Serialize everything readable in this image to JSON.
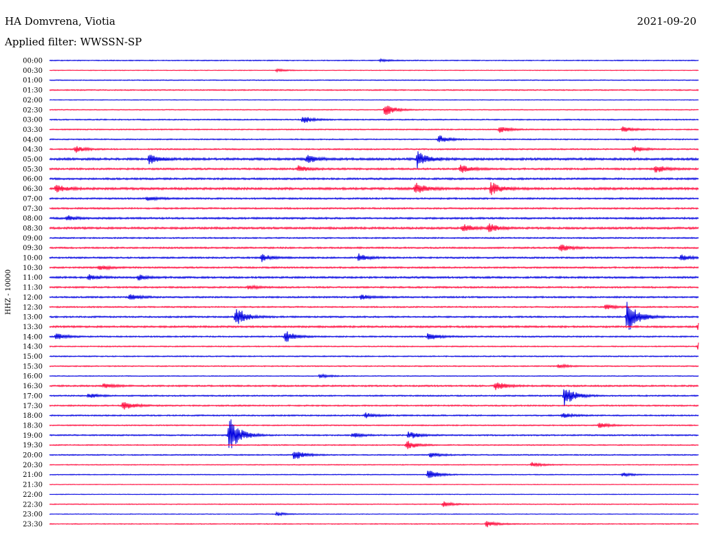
{
  "header": {
    "station": "HA Domvrena, Viotia",
    "date": "2021-09-20",
    "filter": "Applied filter: WWSSN-SP"
  },
  "chart_data": {
    "type": "line",
    "title": "HA Domvrena, Viotia",
    "subtitle": "Applied filter: WWSSN-SP",
    "ylabel": "HHZ - 10000",
    "xlabel": "",
    "grid": false,
    "colors": {
      "even_trace": "#0000e0",
      "odd_trace": "#ff0a3c"
    },
    "rows": [
      "00:00",
      "00:30",
      "01:00",
      "01:30",
      "02:00",
      "02:30",
      "03:00",
      "03:30",
      "04:00",
      "04:30",
      "05:00",
      "05:30",
      "06:00",
      "06:30",
      "07:00",
      "07:30",
      "08:00",
      "08:30",
      "09:00",
      "09:30",
      "10:00",
      "10:30",
      "11:00",
      "11:30",
      "12:00",
      "12:30",
      "13:00",
      "13:30",
      "14:00",
      "14:30",
      "15:00",
      "15:30",
      "16:00",
      "16:30",
      "17:00",
      "17:30",
      "18:00",
      "18:30",
      "19:00",
      "19:30",
      "20:00",
      "20:30",
      "21:00",
      "21:30",
      "22:00",
      "22:30",
      "23:00",
      "23:30"
    ],
    "noise_level": [
      0.4,
      0.3,
      0.4,
      0.5,
      0.3,
      0.4,
      0.5,
      0.5,
      0.5,
      0.6,
      1.0,
      0.8,
      0.8,
      1.0,
      0.7,
      0.7,
      0.8,
      0.9,
      0.6,
      0.7,
      0.7,
      0.7,
      0.8,
      0.7,
      0.7,
      0.6,
      0.7,
      0.8,
      0.6,
      0.5,
      0.5,
      0.5,
      0.4,
      0.7,
      0.6,
      0.6,
      0.6,
      0.5,
      0.6,
      0.5,
      0.5,
      0.4,
      0.4,
      0.3,
      0.3,
      0.4,
      0.3,
      0.4
    ],
    "events": [
      {
        "row": 1,
        "minute": 10.5,
        "amp": 2
      },
      {
        "row": 0,
        "minute": 15.3,
        "amp": 2
      },
      {
        "row": 5,
        "minute": 15.5,
        "amp": 9
      },
      {
        "row": 6,
        "minute": 11.7,
        "amp": 6
      },
      {
        "row": 7,
        "minute": 20.8,
        "amp": 5
      },
      {
        "row": 7,
        "minute": 26.5,
        "amp": 5
      },
      {
        "row": 8,
        "minute": 18.0,
        "amp": 6
      },
      {
        "row": 9,
        "minute": 1.2,
        "amp": 5
      },
      {
        "row": 9,
        "minute": 27.0,
        "amp": 5
      },
      {
        "row": 10,
        "minute": 4.6,
        "amp": 7
      },
      {
        "row": 10,
        "minute": 11.9,
        "amp": 6
      },
      {
        "row": 10,
        "minute": 17.0,
        "amp": 12
      },
      {
        "row": 11,
        "minute": 11.5,
        "amp": 5
      },
      {
        "row": 11,
        "minute": 19.0,
        "amp": 7
      },
      {
        "row": 11,
        "minute": 28.0,
        "amp": 6
      },
      {
        "row": 13,
        "minute": 0.3,
        "amp": 6
      },
      {
        "row": 13,
        "minute": 16.9,
        "amp": 9
      },
      {
        "row": 13,
        "minute": 20.4,
        "amp": 10
      },
      {
        "row": 14,
        "minute": 4.5,
        "amp": 4
      },
      {
        "row": 16,
        "minute": 0.8,
        "amp": 4
      },
      {
        "row": 17,
        "minute": 19.1,
        "amp": 6
      },
      {
        "row": 17,
        "minute": 20.3,
        "amp": 6
      },
      {
        "row": 19,
        "minute": 23.6,
        "amp": 6
      },
      {
        "row": 20,
        "minute": 9.8,
        "amp": 6
      },
      {
        "row": 20,
        "minute": 14.3,
        "amp": 6
      },
      {
        "row": 20,
        "minute": 29.2,
        "amp": 5
      },
      {
        "row": 21,
        "minute": 2.3,
        "amp": 4
      },
      {
        "row": 22,
        "minute": 1.8,
        "amp": 4
      },
      {
        "row": 22,
        "minute": 4.1,
        "amp": 4
      },
      {
        "row": 23,
        "minute": 9.2,
        "amp": 3
      },
      {
        "row": 24,
        "minute": 3.7,
        "amp": 5
      },
      {
        "row": 24,
        "minute": 14.4,
        "amp": 4
      },
      {
        "row": 25,
        "minute": 25.7,
        "amp": 4
      },
      {
        "row": 26,
        "minute": 8.6,
        "amp": 16
      },
      {
        "row": 26,
        "minute": 26.7,
        "amp": 28
      },
      {
        "row": 27,
        "minute": 30.0,
        "amp": 7
      },
      {
        "row": 28,
        "minute": 0.3,
        "amp": 5
      },
      {
        "row": 28,
        "minute": 10.9,
        "amp": 9
      },
      {
        "row": 28,
        "minute": 17.5,
        "amp": 6
      },
      {
        "row": 29,
        "minute": 30.0,
        "amp": 9
      },
      {
        "row": 31,
        "minute": 23.5,
        "amp": 3
      },
      {
        "row": 32,
        "minute": 12.5,
        "amp": 3
      },
      {
        "row": 33,
        "minute": 2.5,
        "amp": 4
      },
      {
        "row": 33,
        "minute": 20.6,
        "amp": 7
      },
      {
        "row": 34,
        "minute": 1.8,
        "amp": 4
      },
      {
        "row": 34,
        "minute": 23.8,
        "amp": 16
      },
      {
        "row": 35,
        "minute": 3.4,
        "amp": 8
      },
      {
        "row": 36,
        "minute": 14.6,
        "amp": 4
      },
      {
        "row": 36,
        "minute": 23.7,
        "amp": 4
      },
      {
        "row": 37,
        "minute": 25.4,
        "amp": 4
      },
      {
        "row": 38,
        "minute": 8.3,
        "amp": 30
      },
      {
        "row": 38,
        "minute": 14.0,
        "amp": 4
      },
      {
        "row": 38,
        "minute": 16.6,
        "amp": 6
      },
      {
        "row": 39,
        "minute": 16.5,
        "amp": 7
      },
      {
        "row": 40,
        "minute": 11.3,
        "amp": 8
      },
      {
        "row": 40,
        "minute": 17.6,
        "amp": 4
      },
      {
        "row": 41,
        "minute": 22.3,
        "amp": 4
      },
      {
        "row": 42,
        "minute": 17.5,
        "amp": 8
      },
      {
        "row": 42,
        "minute": 26.5,
        "amp": 3
      },
      {
        "row": 45,
        "minute": 18.2,
        "amp": 4
      },
      {
        "row": 46,
        "minute": 10.5,
        "amp": 3
      },
      {
        "row": 47,
        "minute": 20.2,
        "amp": 5
      }
    ]
  }
}
